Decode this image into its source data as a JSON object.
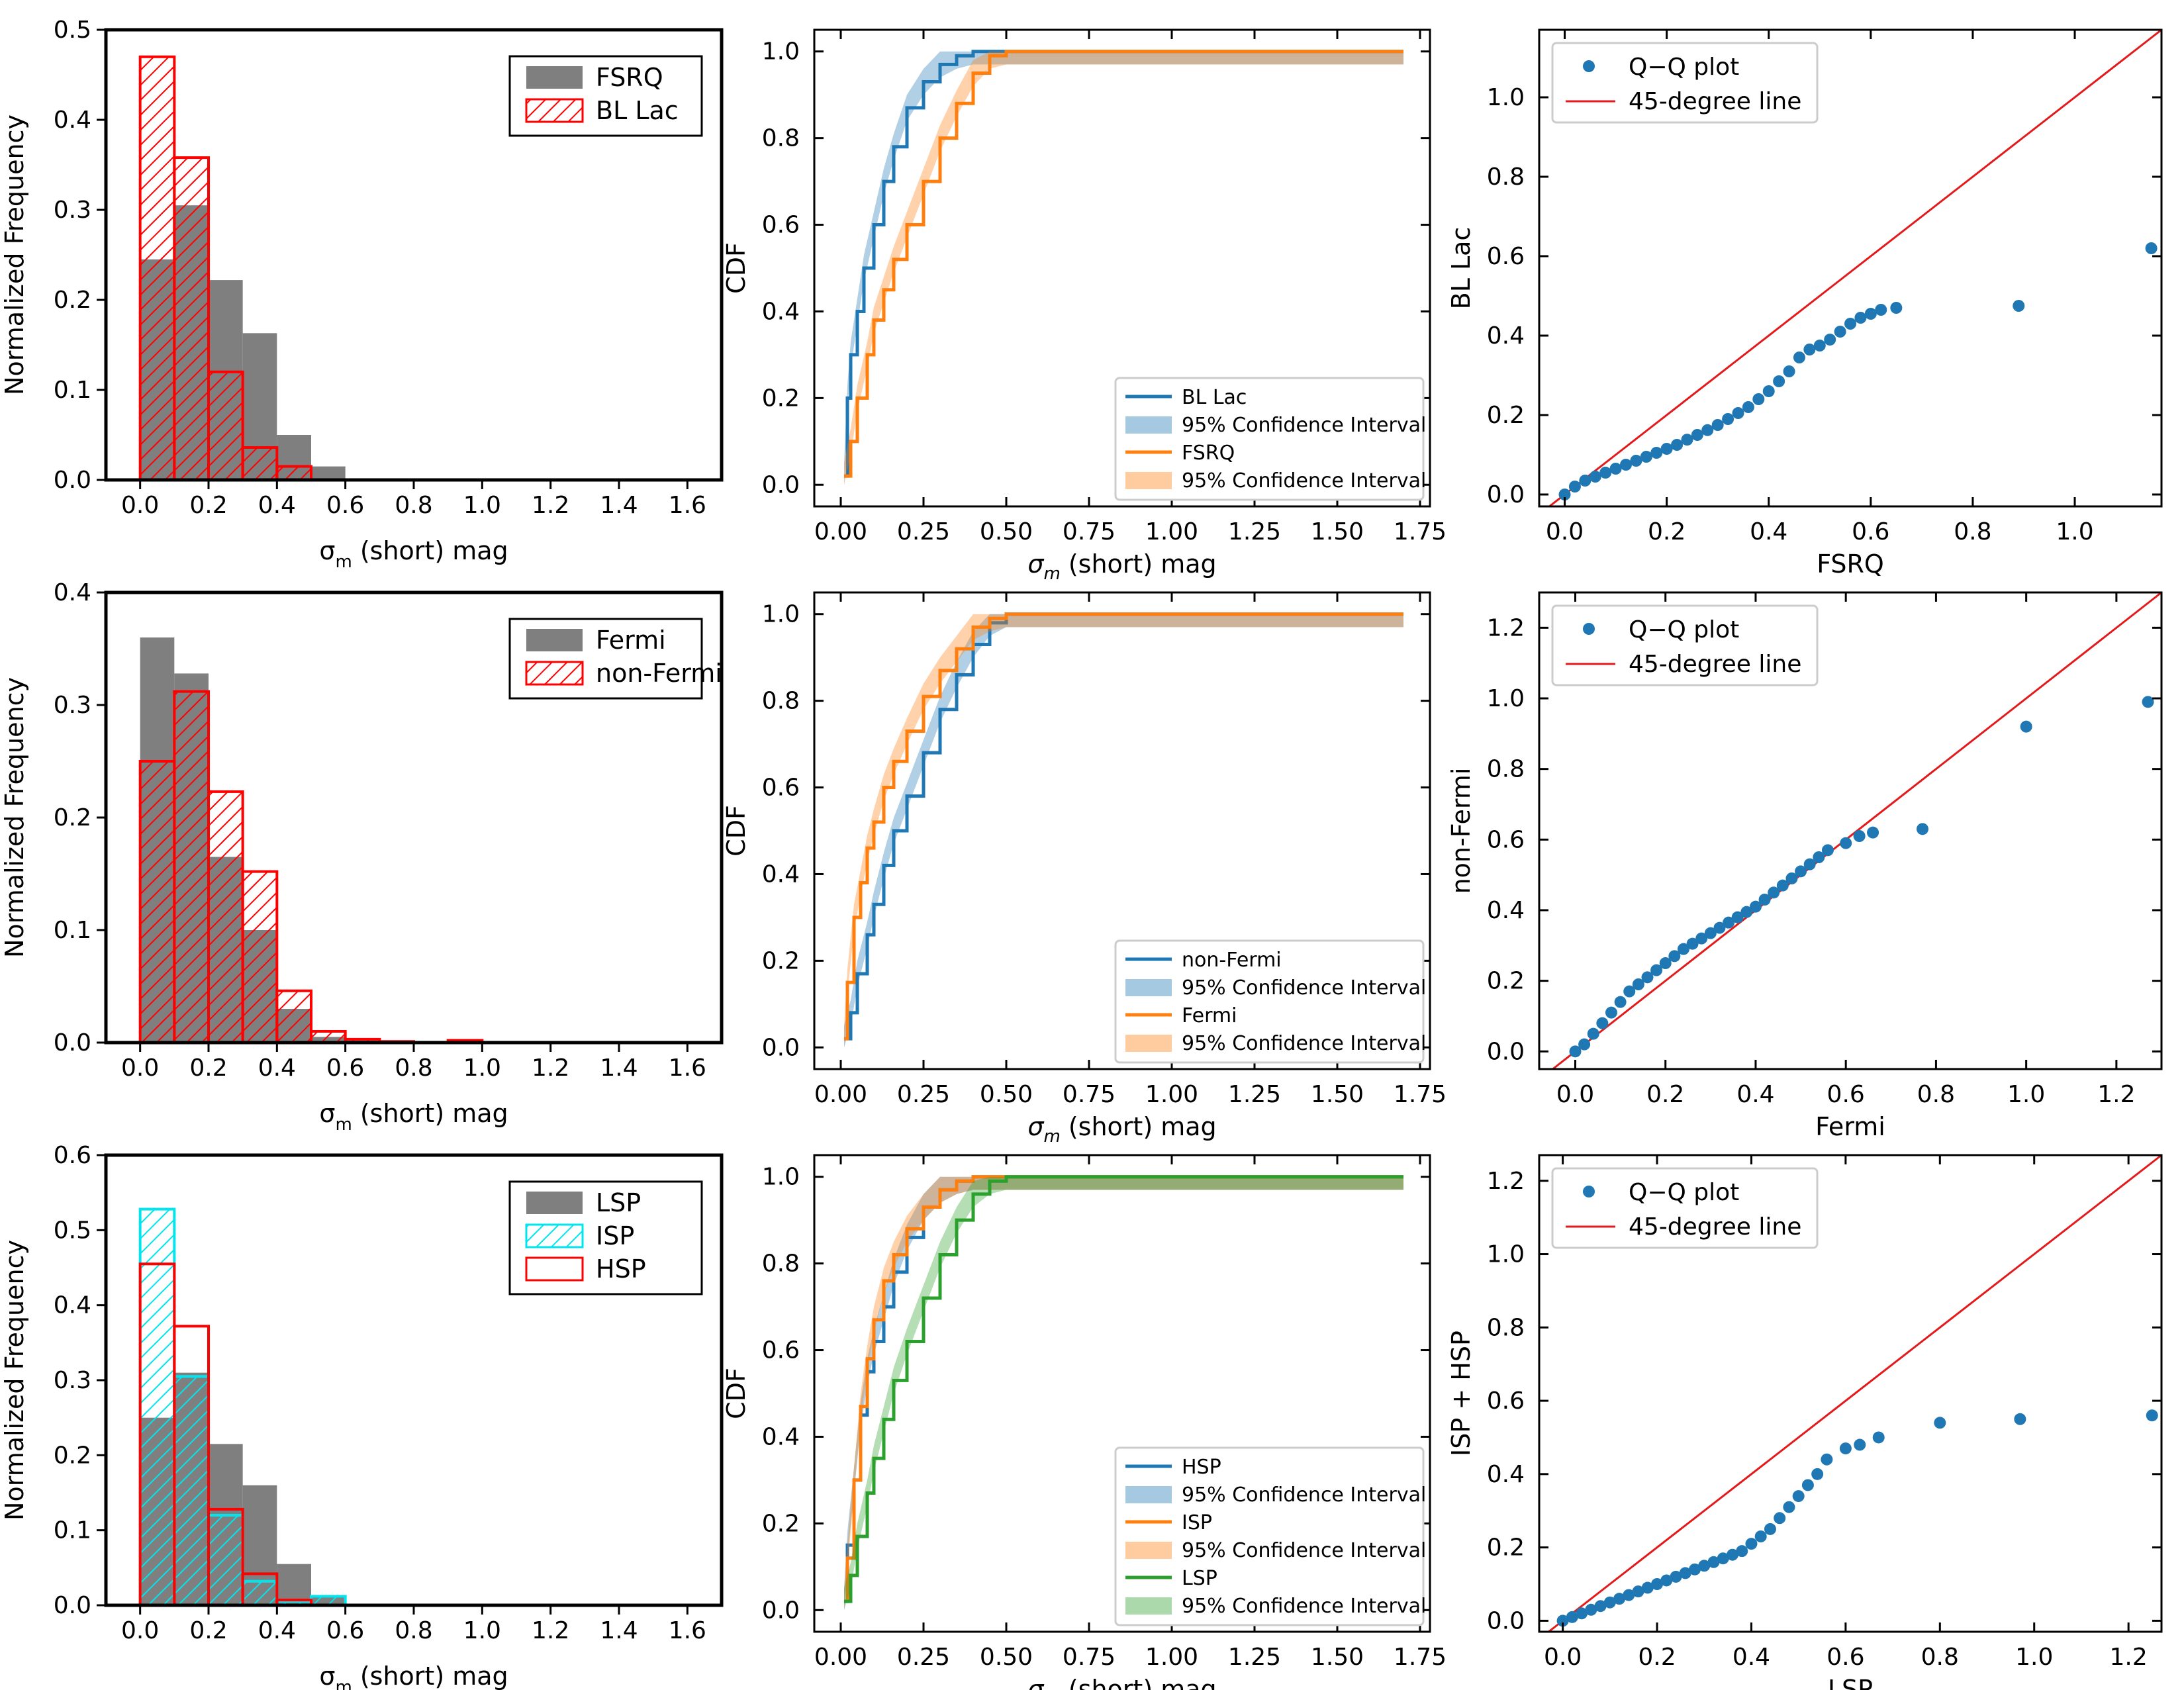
{
  "figure": {
    "colors": {
      "gray": "#7f7f7f",
      "red": "#ff0000",
      "cyan": "#00e5ee",
      "blue": "#1f77b4",
      "orange": "#ff7f0e",
      "green": "#2ca02c",
      "qqline": "#e31a1c"
    }
  },
  "chart_data": [
    {
      "id": "hist1",
      "type": "bar",
      "title": "",
      "xlabel": "σm (short) mag",
      "ylabel": "Normalized Frequency",
      "xlim": [
        -0.1,
        1.7
      ],
      "ylim": [
        0,
        0.5
      ],
      "xticks": [
        0.0,
        0.2,
        0.4,
        0.6,
        0.8,
        1.0,
        1.2,
        1.4,
        1.6
      ],
      "yticks": [
        0.0,
        0.1,
        0.2,
        0.3,
        0.4,
        0.5
      ],
      "bin_edges": [
        0.0,
        0.1,
        0.2,
        0.3,
        0.4,
        0.5,
        0.6
      ],
      "legend_position": "top-right",
      "series": [
        {
          "name": "FSRQ",
          "style": "filled",
          "color": "gray",
          "values": [
            0.245,
            0.305,
            0.222,
            0.163,
            0.05,
            0.015
          ]
        },
        {
          "name": "BL Lac",
          "style": "hatched",
          "color": "red",
          "values": [
            0.47,
            0.358,
            0.12,
            0.036,
            0.015,
            0.0
          ]
        }
      ]
    },
    {
      "id": "cdf1",
      "type": "line",
      "title": "",
      "xlabel": "σm (short) mag",
      "ylabel": "CDF",
      "xlim": [
        -0.08,
        1.78
      ],
      "ylim": [
        -0.05,
        1.05
      ],
      "xticks": [
        0.0,
        0.25,
        0.5,
        0.75,
        1.0,
        1.25,
        1.5,
        1.75
      ],
      "xtick_labels": [
        "0.00",
        "0.25",
        "0.50",
        "0.75",
        "1.00",
        "1.25",
        "1.50",
        "1.75"
      ],
      "yticks": [
        0.0,
        0.2,
        0.4,
        0.6,
        0.8,
        1.0
      ],
      "legend_position": "bottom-right",
      "legend": [
        "BL Lac",
        "95% Confidence Interval",
        "FSRQ",
        "95% Confidence Interval"
      ],
      "series": [
        {
          "name": "BL Lac",
          "color": "blue",
          "x": [
            0.01,
            0.02,
            0.03,
            0.05,
            0.07,
            0.1,
            0.13,
            0.16,
            0.2,
            0.25,
            0.3,
            0.35,
            0.4,
            0.45,
            0.5,
            1.7
          ],
          "y": [
            0.02,
            0.2,
            0.3,
            0.4,
            0.5,
            0.6,
            0.7,
            0.78,
            0.87,
            0.93,
            0.97,
            0.99,
            1.0,
            1.0,
            1.0,
            1.0
          ]
        },
        {
          "name": "FSRQ",
          "color": "orange",
          "x": [
            0.01,
            0.03,
            0.05,
            0.08,
            0.1,
            0.13,
            0.16,
            0.2,
            0.25,
            0.3,
            0.35,
            0.4,
            0.45,
            0.5,
            0.55,
            1.7
          ],
          "y": [
            0.02,
            0.1,
            0.2,
            0.3,
            0.38,
            0.45,
            0.52,
            0.6,
            0.7,
            0.8,
            0.88,
            0.95,
            0.99,
            1.0,
            1.0,
            1.0
          ]
        }
      ]
    },
    {
      "id": "qq1",
      "type": "scatter",
      "title": "",
      "xlabel": "FSRQ",
      "ylabel": "BL Lac",
      "xlim": [
        -0.05,
        1.17
      ],
      "ylim": [
        -0.03,
        1.17
      ],
      "xticks": [
        0.0,
        0.2,
        0.4,
        0.6,
        0.8,
        1.0
      ],
      "yticks": [
        0.0,
        0.2,
        0.4,
        0.6,
        0.8,
        1.0
      ],
      "legend_position": "top-left",
      "legend": [
        "Q−Q plot",
        "45-degree line"
      ],
      "points": {
        "x": [
          0.0,
          0.02,
          0.04,
          0.06,
          0.08,
          0.1,
          0.12,
          0.14,
          0.16,
          0.18,
          0.2,
          0.22,
          0.24,
          0.26,
          0.28,
          0.3,
          0.32,
          0.34,
          0.36,
          0.38,
          0.4,
          0.42,
          0.44,
          0.46,
          0.48,
          0.5,
          0.52,
          0.54,
          0.56,
          0.58,
          0.6,
          0.62,
          0.65,
          0.89,
          1.15
        ],
        "y": [
          0.0,
          0.02,
          0.035,
          0.045,
          0.055,
          0.065,
          0.075,
          0.085,
          0.095,
          0.105,
          0.115,
          0.125,
          0.138,
          0.15,
          0.162,
          0.175,
          0.19,
          0.205,
          0.22,
          0.24,
          0.26,
          0.285,
          0.31,
          0.345,
          0.365,
          0.375,
          0.39,
          0.41,
          0.43,
          0.445,
          0.455,
          0.465,
          0.47,
          0.475,
          0.62
        ]
      }
    },
    {
      "id": "hist2",
      "type": "bar",
      "title": "",
      "xlabel": "σm (short) mag",
      "ylabel": "Normalized Frequency",
      "xlim": [
        -0.1,
        1.7
      ],
      "ylim": [
        0,
        0.4
      ],
      "xticks": [
        0.0,
        0.2,
        0.4,
        0.6,
        0.8,
        1.0,
        1.2,
        1.4,
        1.6
      ],
      "yticks": [
        0.0,
        0.1,
        0.2,
        0.3,
        0.4
      ],
      "bin_edges": [
        0.0,
        0.1,
        0.2,
        0.3,
        0.4,
        0.5,
        0.6,
        0.7,
        0.8,
        0.9,
        1.0
      ],
      "legend_position": "top-right",
      "series": [
        {
          "name": "Fermi",
          "style": "filled",
          "color": "gray",
          "values": [
            0.36,
            0.328,
            0.165,
            0.1,
            0.03,
            0.005,
            0.002,
            0.0,
            0.0,
            0.0
          ]
        },
        {
          "name": "non-Fermi",
          "style": "hatched",
          "color": "red",
          "values": [
            0.25,
            0.312,
            0.223,
            0.152,
            0.046,
            0.01,
            0.003,
            0.001,
            0.0,
            0.002
          ]
        }
      ]
    },
    {
      "id": "cdf2",
      "type": "line",
      "title": "",
      "xlabel": "σm (short) mag",
      "ylabel": "CDF",
      "xlim": [
        -0.08,
        1.78
      ],
      "ylim": [
        -0.05,
        1.05
      ],
      "xticks": [
        0.0,
        0.25,
        0.5,
        0.75,
        1.0,
        1.25,
        1.5,
        1.75
      ],
      "xtick_labels": [
        "0.00",
        "0.25",
        "0.50",
        "0.75",
        "1.00",
        "1.25",
        "1.50",
        "1.75"
      ],
      "yticks": [
        0.0,
        0.2,
        0.4,
        0.6,
        0.8,
        1.0
      ],
      "legend_position": "bottom-right",
      "legend": [
        "non-Fermi",
        "95% Confidence Interval",
        "Fermi",
        "95% Confidence Interval"
      ],
      "series": [
        {
          "name": "non-Fermi",
          "color": "blue",
          "x": [
            0.01,
            0.03,
            0.05,
            0.08,
            0.1,
            0.13,
            0.16,
            0.2,
            0.25,
            0.3,
            0.35,
            0.4,
            0.45,
            0.5,
            0.55,
            1.7
          ],
          "y": [
            0.02,
            0.08,
            0.17,
            0.26,
            0.33,
            0.42,
            0.5,
            0.58,
            0.68,
            0.78,
            0.86,
            0.93,
            0.98,
            1.0,
            1.0,
            1.0
          ]
        },
        {
          "name": "Fermi",
          "color": "orange",
          "x": [
            0.01,
            0.02,
            0.04,
            0.06,
            0.08,
            0.1,
            0.13,
            0.16,
            0.2,
            0.25,
            0.3,
            0.35,
            0.4,
            0.45,
            0.5,
            1.7
          ],
          "y": [
            0.02,
            0.15,
            0.3,
            0.38,
            0.46,
            0.52,
            0.6,
            0.66,
            0.73,
            0.81,
            0.87,
            0.92,
            0.97,
            0.99,
            1.0,
            1.0
          ]
        }
      ]
    },
    {
      "id": "qq2",
      "type": "scatter",
      "title": "",
      "xlabel": "Fermi",
      "ylabel": "non-Fermi",
      "xlim": [
        -0.08,
        1.3
      ],
      "ylim": [
        -0.05,
        1.3
      ],
      "xticks": [
        0.0,
        0.2,
        0.4,
        0.6,
        0.8,
        1.0,
        1.2
      ],
      "yticks": [
        0.0,
        0.2,
        0.4,
        0.6,
        0.8,
        1.0,
        1.2
      ],
      "legend_position": "top-left",
      "legend": [
        "Q−Q plot",
        "45-degree line"
      ],
      "points": {
        "x": [
          0.0,
          0.02,
          0.04,
          0.06,
          0.08,
          0.1,
          0.12,
          0.14,
          0.16,
          0.18,
          0.2,
          0.22,
          0.24,
          0.26,
          0.28,
          0.3,
          0.32,
          0.34,
          0.36,
          0.38,
          0.4,
          0.42,
          0.44,
          0.46,
          0.48,
          0.5,
          0.52,
          0.54,
          0.56,
          0.6,
          0.63,
          0.66,
          0.77,
          1.0,
          1.27
        ],
        "y": [
          0.0,
          0.02,
          0.05,
          0.08,
          0.11,
          0.14,
          0.17,
          0.19,
          0.21,
          0.23,
          0.25,
          0.27,
          0.29,
          0.305,
          0.32,
          0.335,
          0.35,
          0.365,
          0.38,
          0.395,
          0.41,
          0.43,
          0.45,
          0.47,
          0.49,
          0.51,
          0.53,
          0.55,
          0.57,
          0.59,
          0.61,
          0.62,
          0.63,
          0.92,
          0.99
        ]
      }
    },
    {
      "id": "hist3",
      "type": "bar",
      "title": "",
      "xlabel": "σm (short) mag",
      "ylabel": "Normalized Frequency",
      "xlim": [
        -0.1,
        1.7
      ],
      "ylim": [
        0,
        0.6
      ],
      "xticks": [
        0.0,
        0.2,
        0.4,
        0.6,
        0.8,
        1.0,
        1.2,
        1.4,
        1.6
      ],
      "yticks": [
        0.0,
        0.1,
        0.2,
        0.3,
        0.4,
        0.5,
        0.6
      ],
      "bin_edges": [
        0.0,
        0.1,
        0.2,
        0.3,
        0.4,
        0.5,
        0.6
      ],
      "legend_position": "top-right",
      "series": [
        {
          "name": "LSP",
          "style": "filled",
          "color": "gray",
          "values": [
            0.25,
            0.31,
            0.215,
            0.16,
            0.055,
            0.012
          ]
        },
        {
          "name": "ISP",
          "style": "hatched",
          "color": "cyan",
          "values": [
            0.528,
            0.305,
            0.12,
            0.032,
            0.005,
            0.012
          ]
        },
        {
          "name": "HSP",
          "style": "outline",
          "color": "red",
          "values": [
            0.455,
            0.372,
            0.128,
            0.042,
            0.007,
            0.0
          ]
        }
      ]
    },
    {
      "id": "cdf3",
      "type": "line",
      "title": "",
      "xlabel": "σm (short) mag",
      "ylabel": "CDF",
      "xlim": [
        -0.08,
        1.78
      ],
      "ylim": [
        -0.05,
        1.05
      ],
      "xticks": [
        0.0,
        0.25,
        0.5,
        0.75,
        1.0,
        1.25,
        1.5,
        1.75
      ],
      "xtick_labels": [
        "0.00",
        "0.25",
        "0.50",
        "0.75",
        "1.00",
        "1.25",
        "1.50",
        "1.75"
      ],
      "yticks": [
        0.0,
        0.2,
        0.4,
        0.6,
        0.8,
        1.0
      ],
      "legend_position": "bottom-right",
      "legend": [
        "HSP",
        "95% Confidence Interval",
        "ISP",
        "95% Confidence Interval",
        "LSP",
        "95% Confidence Interval"
      ],
      "series": [
        {
          "name": "HSP",
          "color": "blue",
          "x": [
            0.01,
            0.02,
            0.04,
            0.06,
            0.08,
            0.1,
            0.13,
            0.16,
            0.2,
            0.25,
            0.3,
            0.35,
            0.4,
            1.7
          ],
          "y": [
            0.02,
            0.15,
            0.3,
            0.45,
            0.55,
            0.62,
            0.7,
            0.78,
            0.86,
            0.93,
            0.97,
            0.99,
            1.0,
            1.0
          ]
        },
        {
          "name": "ISP",
          "color": "orange",
          "x": [
            0.01,
            0.02,
            0.04,
            0.06,
            0.08,
            0.1,
            0.13,
            0.16,
            0.2,
            0.25,
            0.3,
            0.35,
            0.4,
            1.7
          ],
          "y": [
            0.02,
            0.12,
            0.3,
            0.47,
            0.58,
            0.67,
            0.76,
            0.82,
            0.88,
            0.93,
            0.97,
            0.99,
            1.0,
            1.0
          ]
        },
        {
          "name": "LSP",
          "color": "green",
          "x": [
            0.01,
            0.03,
            0.05,
            0.08,
            0.1,
            0.13,
            0.16,
            0.2,
            0.25,
            0.3,
            0.35,
            0.4,
            0.45,
            0.5,
            1.7
          ],
          "y": [
            0.02,
            0.08,
            0.17,
            0.27,
            0.35,
            0.44,
            0.53,
            0.62,
            0.72,
            0.82,
            0.9,
            0.96,
            0.99,
            1.0,
            1.0
          ]
        }
      ]
    },
    {
      "id": "qq3",
      "type": "scatter",
      "title": "",
      "xlabel": "LSP",
      "ylabel": "ISP + HSP",
      "xlim": [
        -0.05,
        1.27
      ],
      "ylim": [
        -0.03,
        1.27
      ],
      "xticks": [
        0.0,
        0.2,
        0.4,
        0.6,
        0.8,
        1.0,
        1.2
      ],
      "yticks": [
        0.0,
        0.2,
        0.4,
        0.6,
        0.8,
        1.0,
        1.2
      ],
      "legend_position": "top-left",
      "legend": [
        "Q−Q plot",
        "45-degree line"
      ],
      "points": {
        "x": [
          0.0,
          0.02,
          0.04,
          0.06,
          0.08,
          0.1,
          0.12,
          0.14,
          0.16,
          0.18,
          0.2,
          0.22,
          0.24,
          0.26,
          0.28,
          0.3,
          0.32,
          0.34,
          0.36,
          0.38,
          0.4,
          0.42,
          0.44,
          0.46,
          0.48,
          0.5,
          0.52,
          0.54,
          0.56,
          0.6,
          0.63,
          0.67,
          0.8,
          0.97,
          1.25
        ],
        "y": [
          0.0,
          0.01,
          0.02,
          0.03,
          0.04,
          0.05,
          0.06,
          0.07,
          0.08,
          0.09,
          0.1,
          0.11,
          0.12,
          0.13,
          0.14,
          0.15,
          0.16,
          0.17,
          0.18,
          0.19,
          0.21,
          0.23,
          0.25,
          0.28,
          0.31,
          0.34,
          0.37,
          0.4,
          0.44,
          0.47,
          0.48,
          0.5,
          0.54,
          0.55,
          0.56
        ]
      }
    }
  ]
}
